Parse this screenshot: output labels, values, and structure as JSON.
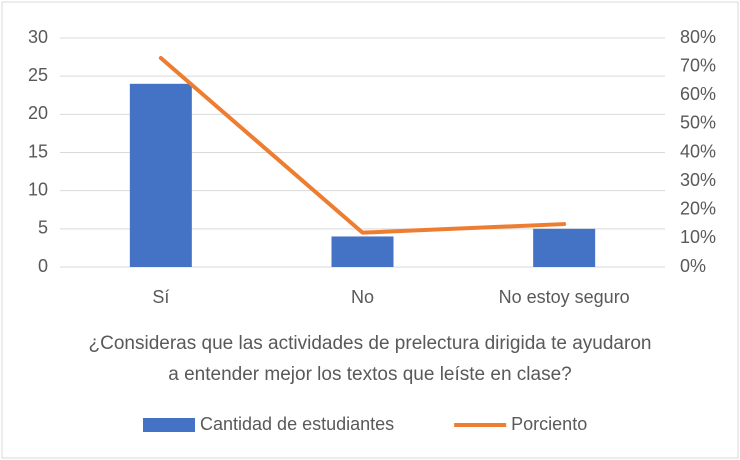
{
  "chart_data": {
    "type": "combo",
    "x_label": "¿Consideras que las actividades de prelectura dirigida te ayudaron a entender mejor los textos que leíste en clase?",
    "categories": [
      "Sí",
      "No",
      "No estoy seguro"
    ],
    "series": [
      {
        "name": "Cantidad de estudiantes",
        "type": "bar",
        "color": "#4472c4",
        "values": [
          24,
          4,
          5
        ]
      },
      {
        "name": "Porciento",
        "type": "line",
        "axis": "y2",
        "color": "#ed7d31",
        "values": [
          73,
          12,
          15
        ]
      }
    ],
    "ylim": [
      0,
      30
    ],
    "yticks": [
      0,
      5,
      10,
      15,
      20,
      25,
      30
    ],
    "y2lim": [
      0,
      80
    ],
    "y2ticks": [
      {
        "value": 0,
        "label": "0%"
      },
      {
        "value": 10,
        "label": "10%"
      },
      {
        "value": 20,
        "label": "20%"
      },
      {
        "value": 30,
        "label": "30%"
      },
      {
        "value": 40,
        "label": "40%"
      },
      {
        "value": 50,
        "label": "50%"
      },
      {
        "value": 60,
        "label": "60%"
      },
      {
        "value": 70,
        "label": "70%"
      },
      {
        "value": 80,
        "label": "80%"
      }
    ],
    "grid": true,
    "legend": "bottom"
  }
}
